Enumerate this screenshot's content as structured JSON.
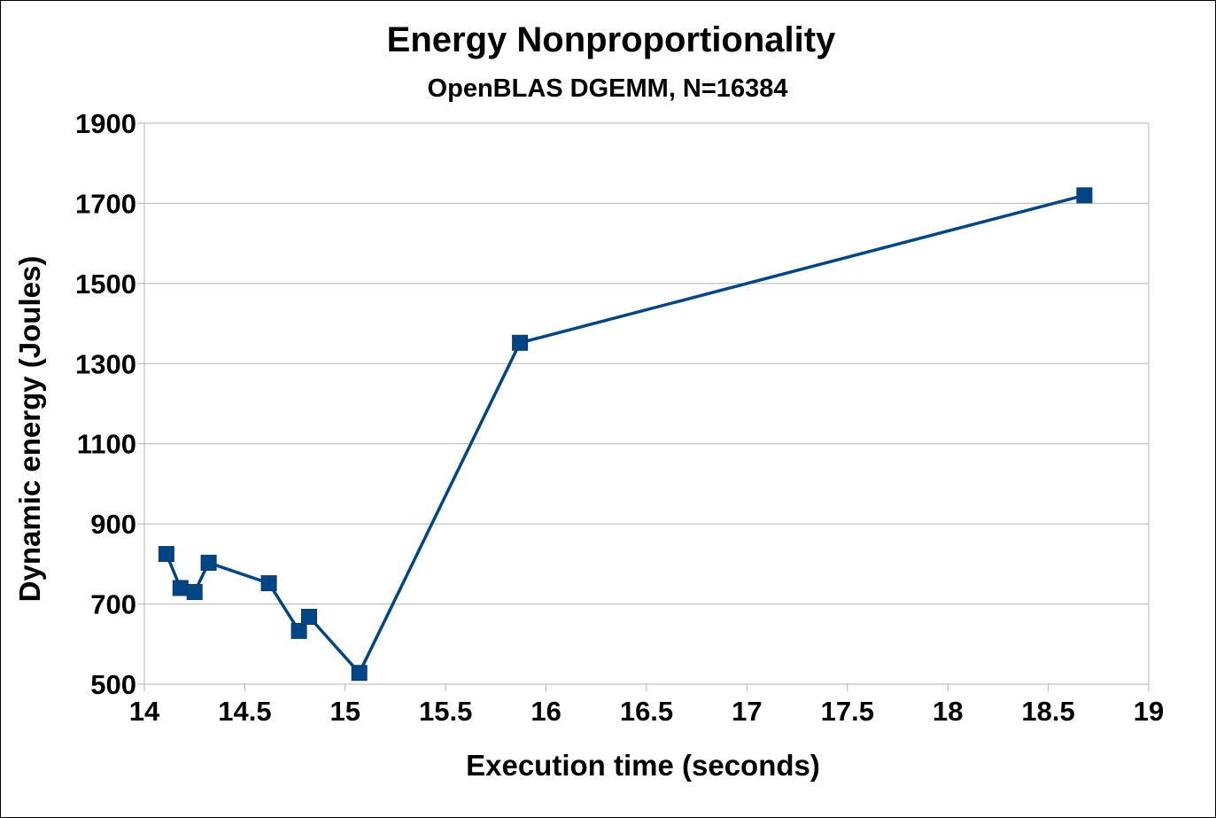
{
  "chart_data": {
    "type": "line",
    "title": "Energy Nonproportionality",
    "subtitle": "OpenBLAS DGEMM, N=16384",
    "xlabel": "Execution time (seconds)",
    "ylabel": "Dynamic energy (Joules)",
    "xlim": [
      14,
      19
    ],
    "ylim": [
      500,
      1900
    ],
    "x_ticks": [
      "14",
      "14.5",
      "15",
      "15.5",
      "16",
      "16.5",
      "17",
      "17.5",
      "18",
      "18.5",
      "19"
    ],
    "y_ticks": [
      "500",
      "700",
      "900",
      "1100",
      "1300",
      "1500",
      "1700",
      "1900"
    ],
    "grid": "horizontal",
    "legend": "none",
    "series": [
      {
        "color": "#004586",
        "marker": "square",
        "x": [
          14.11,
          14.18,
          14.25,
          14.32,
          14.62,
          14.77,
          14.82,
          15.07,
          15.87,
          18.68
        ],
        "y": [
          825,
          740,
          730,
          803,
          752,
          633,
          668,
          528,
          1352,
          1720
        ]
      }
    ]
  }
}
